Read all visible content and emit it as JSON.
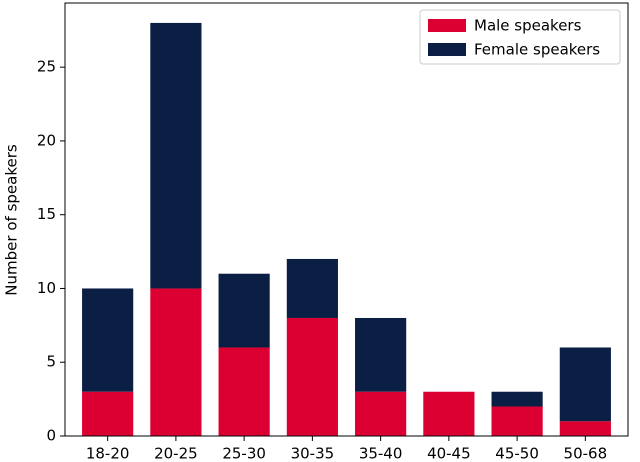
{
  "chart_data": {
    "type": "stacked_bar",
    "y_label": "Number of speakers",
    "categories": [
      "18-20",
      "20-25",
      "25-30",
      "30-35",
      "35-40",
      "40-45",
      "45-50",
      "50-68"
    ],
    "series": [
      {
        "name": "Male speakers",
        "color": "#dc0032",
        "values": [
          3,
          10,
          6,
          8,
          3,
          3,
          2,
          1
        ]
      },
      {
        "name": "Female speakers",
        "color": "#0b1f44",
        "values": [
          7,
          18,
          5,
          4,
          5,
          0,
          1,
          5
        ]
      }
    ],
    "ylim": [
      0,
      29.35
    ],
    "yticks": [
      0,
      5,
      10,
      15,
      20,
      25
    ],
    "legend": "upper right"
  }
}
